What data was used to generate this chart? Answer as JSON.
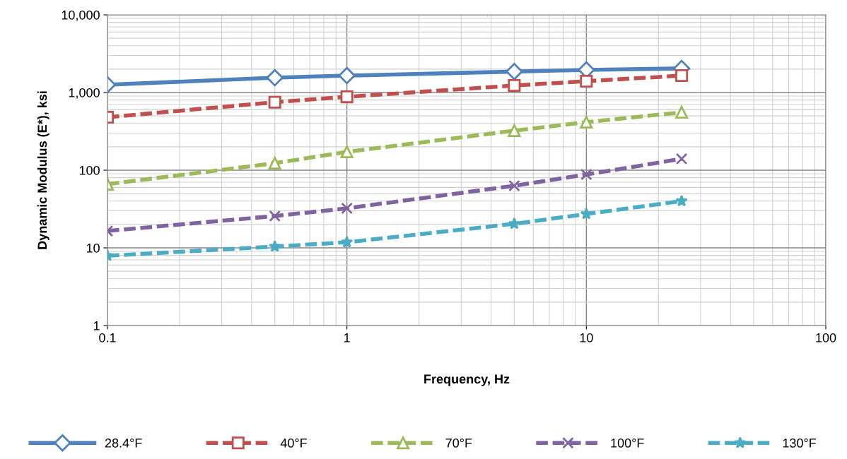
{
  "chart_data": {
    "type": "line",
    "xlabel": "Frequency, Hz",
    "ylabel": "Dynamic Modulus (E*), ksi",
    "log": "xy",
    "grid": true,
    "legend": "bottom",
    "x": [
      0.1,
      0.5,
      1,
      5,
      10,
      25
    ],
    "xlim": [
      0.1,
      100
    ],
    "xticks": [
      0.1,
      1,
      10,
      100
    ],
    "ylim": [
      1,
      10000
    ],
    "yticks": [
      1,
      10,
      100,
      {
        "value": 1000,
        "label": "1,000"
      },
      {
        "value": 10000,
        "label": "10,000"
      }
    ],
    "series": [
      {
        "name": "28.4°F",
        "color": "#4f81bd",
        "marker": "diamond",
        "line_style": "solid",
        "values": [
          1260,
          1550,
          1650,
          1860,
          1950,
          2040
        ]
      },
      {
        "name": "40°F",
        "color": "#c0504d",
        "marker": "square",
        "line_style": "dashed",
        "values": [
          480,
          750,
          880,
          1230,
          1400,
          1650
        ]
      },
      {
        "name": "70°F",
        "color": "#9bbb59",
        "marker": "triangle",
        "line_style": "dashed",
        "values": [
          66,
          123,
          172,
          323,
          415,
          556
        ]
      },
      {
        "name": "100°F",
        "color": "#8064a2",
        "marker": "cross",
        "line_style": "dashed",
        "values": [
          16.5,
          25.7,
          32.3,
          63,
          88,
          140
        ]
      },
      {
        "name": "130°F",
        "color": "#4bacc6",
        "marker": "star",
        "line_style": "dashed",
        "values": [
          7.9,
          10.4,
          11.8,
          20.4,
          27.3,
          40
        ]
      }
    ]
  }
}
